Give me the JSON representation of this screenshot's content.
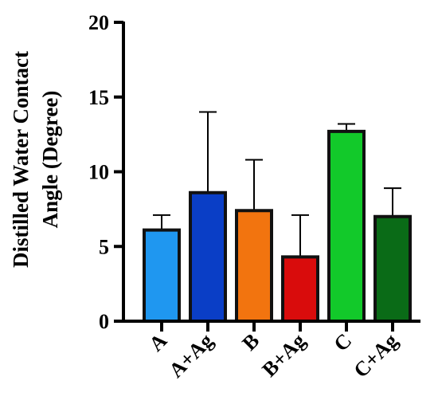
{
  "chart_data": {
    "type": "bar",
    "categories": [
      "A",
      "A+Ag",
      "B",
      "B+Ag",
      "C",
      "C+Ag"
    ],
    "values": [
      6.1,
      8.6,
      7.4,
      4.3,
      12.7,
      7.0
    ],
    "errors": [
      1.0,
      5.4,
      3.4,
      2.8,
      0.5,
      1.9
    ],
    "colors": [
      "#1f97f0",
      "#0a3ec6",
      "#f2740f",
      "#d90c0c",
      "#12c92a",
      "#0a6b17"
    ],
    "xlabel": "",
    "ylabel": "Distilled Water Contact Angle (Degree)",
    "ylabel_lines": [
      "Distilled Water Contact",
      "Angle (Degree)"
    ],
    "ylim": [
      0,
      20
    ],
    "yticks": [
      0,
      5,
      10,
      15,
      20
    ],
    "grid": false,
    "error_bars": "upper"
  }
}
